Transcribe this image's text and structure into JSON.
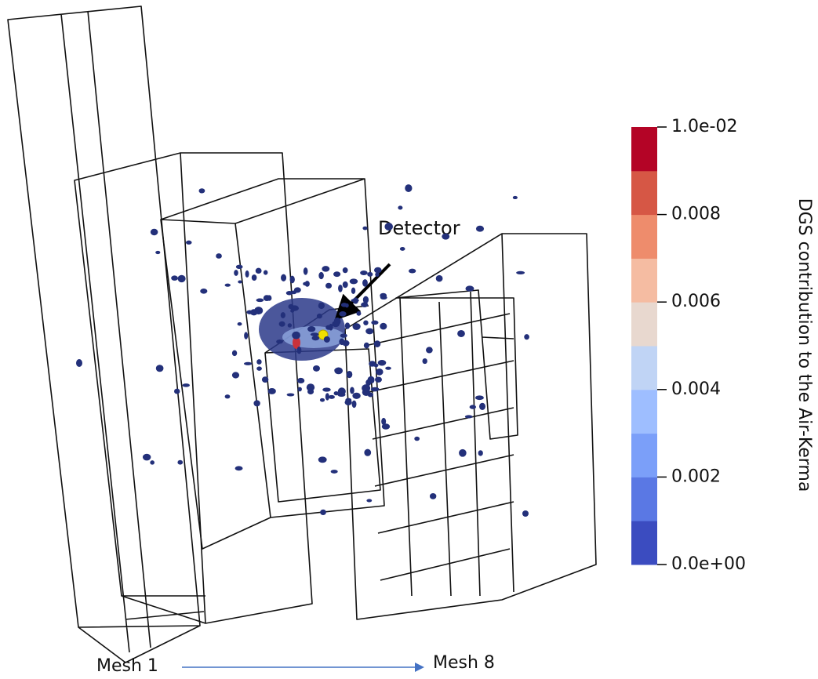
{
  "colorbar": {
    "label": "DGS contribution to the Air-Kerma",
    "range": [
      0,
      0.01
    ],
    "ticks": [
      {
        "value": 0.01,
        "label": "1.0e-02"
      },
      0.008,
      0.006,
      0.004,
      0.002,
      {
        "value": 0,
        "label": "0.0e+00"
      }
    ],
    "colors": [
      "#3b4cc0",
      "#5a78e4",
      "#7b9ff9",
      "#9ebeff",
      "#c0d4f5",
      "#e8d8cf",
      "#f5bca2",
      "#ee8c6c",
      "#d65745",
      "#b40426"
    ]
  },
  "annotations": {
    "detector": "Detector",
    "start": "Mesh 1",
    "end": "Mesh 8"
  }
}
